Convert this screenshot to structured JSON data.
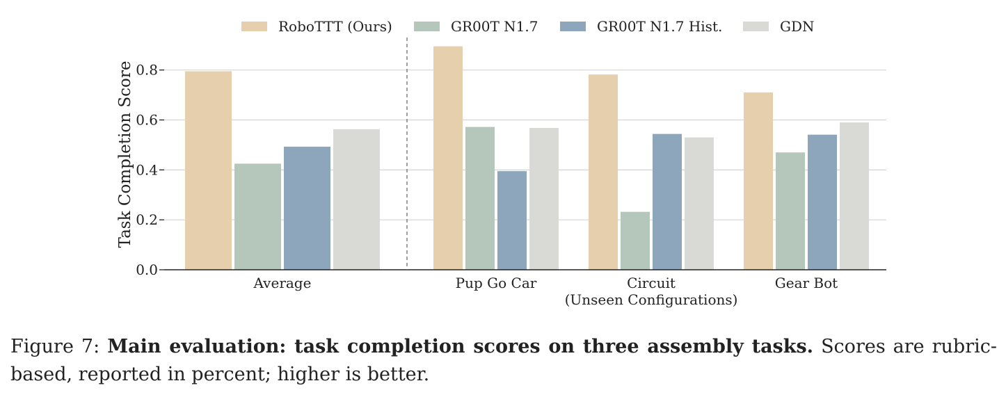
{
  "chart_data": {
    "type": "bar",
    "ylabel": "Task Completion Score",
    "xlabel": "",
    "ylim": [
      0,
      0.93
    ],
    "yticks": [
      0.0,
      0.2,
      0.4,
      0.6,
      0.8
    ],
    "ytick_labels": [
      "0.0",
      "0.2",
      "0.4",
      "0.6",
      "0.8"
    ],
    "grid": "horizontal",
    "legend_position": "top-center",
    "groups": [
      {
        "label": "Average",
        "sublabel": "",
        "values": [
          0.795,
          0.425,
          0.493,
          0.563
        ]
      },
      {
        "label": "Pup Go Car",
        "sublabel": "",
        "values": [
          0.895,
          0.572,
          0.395,
          0.568
        ]
      },
      {
        "label": "Circuit",
        "sublabel": "(Unseen Configurations)",
        "values": [
          0.782,
          0.232,
          0.544,
          0.53
        ]
      },
      {
        "label": "Gear Bot",
        "sublabel": "",
        "values": [
          0.71,
          0.47,
          0.541,
          0.59
        ]
      }
    ],
    "series": [
      {
        "name": "RoboTTT (Ours)",
        "color": "#e6cfad"
      },
      {
        "name": "GR00T N1.7",
        "color": "#b5c6bb"
      },
      {
        "name": "GR00T N1.7 Hist.",
        "color": "#8da6bc"
      },
      {
        "name": "GDN",
        "color": "#d9dad5"
      }
    ],
    "separator_after_group": "Average"
  },
  "caption": {
    "prefix": "Figure 7: ",
    "bold": "Main evaluation: task completion scores on three assembly tasks.",
    "rest": " Scores are rubric-based, reported in percent; higher is better."
  }
}
